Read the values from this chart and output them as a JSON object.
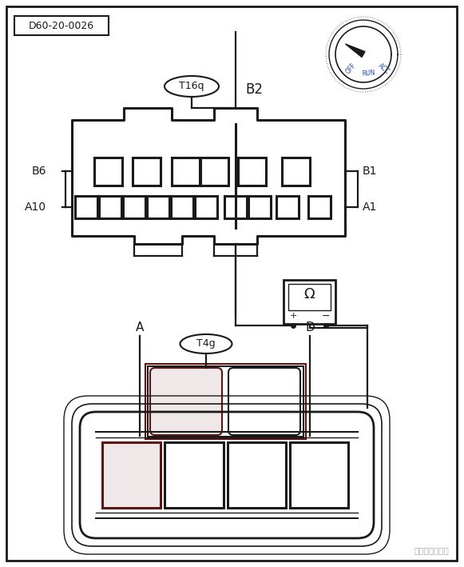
{
  "title_label": "D60-20-0026",
  "bg_color": "#ffffff",
  "dark": "#1a1a1a",
  "dark_red": "#5c1515",
  "light_red": "#f0e8e8",
  "connector_top_label": "T16q",
  "B2_label": "B2",
  "B6_label": "B6",
  "A10_label": "A10",
  "B1_label": "B1",
  "A1_label": "A1",
  "connector_bot_label": "T4g",
  "A_label": "A",
  "D_label": "D",
  "watermark": "汽车维修技术网"
}
